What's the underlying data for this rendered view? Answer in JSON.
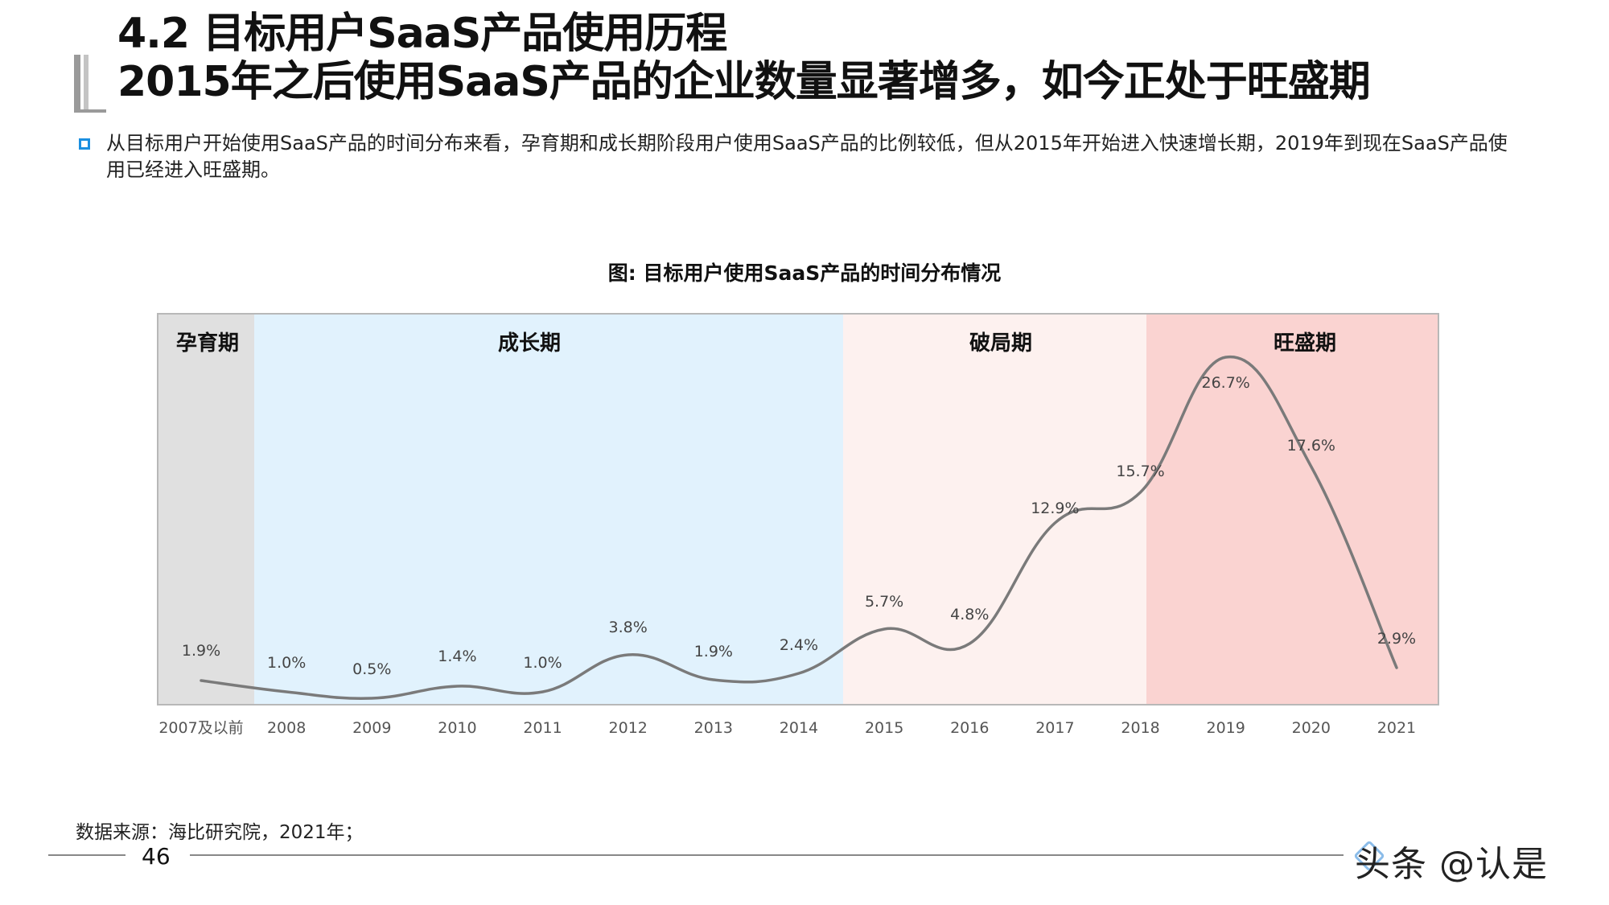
{
  "header": {
    "title_line1": "4.2 目标用户SaaS产品使用历程",
    "title_line2": "2015年之后使用SaaS产品的企业数量显著增多，如今正处于旺盛期"
  },
  "intro": {
    "text": "从目标用户开始使用SaaS产品的时间分布来看，孕育期和成长期阶段用户使用SaaS产品的比例较低，但从2015年开始进入快速增长期，2019年到现在SaaS产品使用已经进入旺盛期。"
  },
  "chart_data": {
    "type": "line",
    "title": "图: 目标用户使用SaaS产品的时间分布情况",
    "categories": [
      "2007及以前",
      "2008",
      "2009",
      "2010",
      "2011",
      "2012",
      "2013",
      "2014",
      "2015",
      "2016",
      "2017",
      "2018",
      "2019",
      "2020",
      "2021"
    ],
    "values": [
      1.9,
      1.0,
      0.5,
      1.4,
      1.0,
      3.8,
      1.9,
      2.4,
      5.7,
      4.8,
      12.9,
      15.7,
      26.7,
      17.6,
      2.9
    ],
    "value_labels": [
      "1.9%",
      "1.0%",
      "0.5%",
      "1.4%",
      "1.0%",
      "3.8%",
      "1.9%",
      "2.4%",
      "5.7%",
      "4.8%",
      "12.9%",
      "15.7%",
      "26.7%",
      "17.6%",
      "2.9%"
    ],
    "unit": "%",
    "line_color": "#7a7a7a",
    "ylim": [
      0,
      30
    ],
    "grid": false,
    "phases": [
      {
        "label": "孕育期",
        "from": 0,
        "to": 0,
        "color": "#e0e0e0"
      },
      {
        "label": "成长期",
        "from": 1,
        "to": 7,
        "color": "#e1f2fd"
      },
      {
        "label": "破局期",
        "from": 8,
        "to": 11,
        "color": "#fdf1ef"
      },
      {
        "label": "旺盛期",
        "from": 12,
        "to": 14,
        "color": "#fad3d1"
      }
    ]
  },
  "footer": {
    "source": "数据来源：海比研究院，2021年；",
    "page_number": "46",
    "brand": "头条 @认是"
  }
}
